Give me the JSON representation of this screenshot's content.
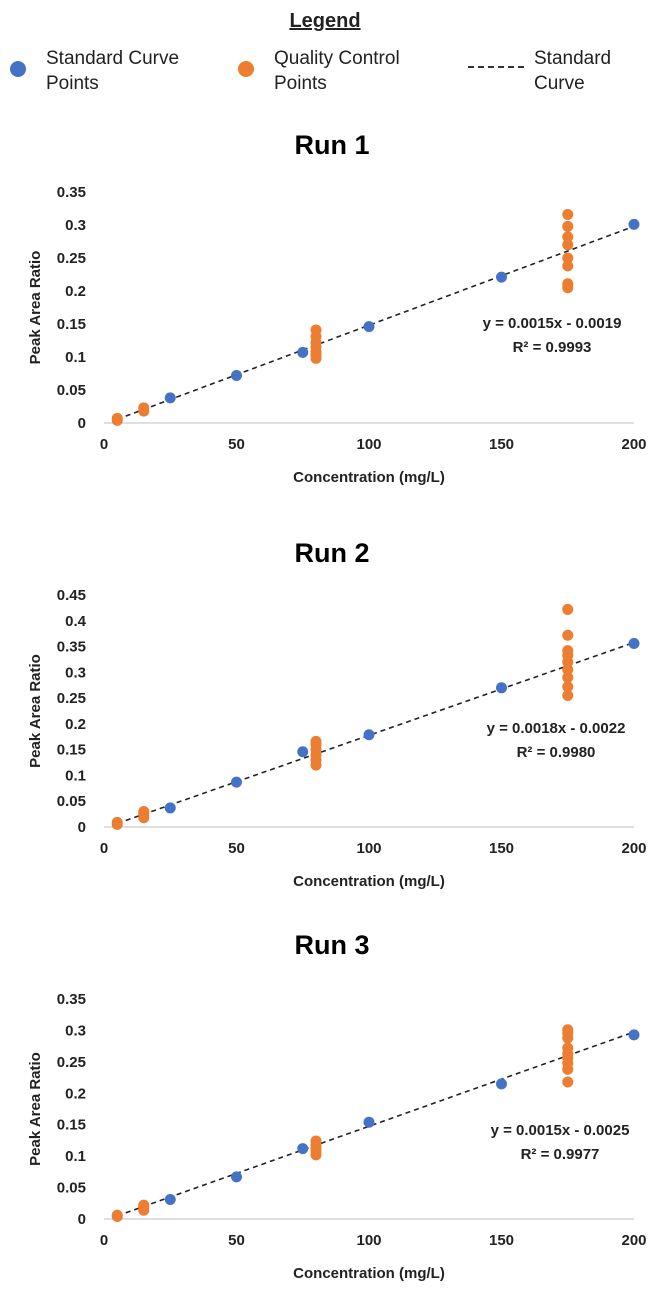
{
  "legend": {
    "title": "Legend",
    "items": [
      {
        "label_line1": "Standard Curve",
        "label_line2": "Points",
        "color": "#4472C4",
        "kind": "point"
      },
      {
        "label_line1": "Quality Control",
        "label_line2": "Points",
        "color": "#ED7D31",
        "kind": "point"
      },
      {
        "label_line1": "Standard",
        "label_line2": "Curve",
        "color": "#333333",
        "kind": "dashed-line"
      }
    ]
  },
  "chart_data": [
    {
      "type": "scatter",
      "title": "Run 1",
      "xlabel": "Concentration (mg/L)",
      "ylabel": "Peak Area Ratio",
      "xlim": [
        0,
        200
      ],
      "ylim": [
        0,
        0.35
      ],
      "xticks": [
        "0",
        "50",
        "100",
        "150",
        "200"
      ],
      "yticks": [
        "0",
        "0.05",
        "0.1",
        "0.15",
        "0.2",
        "0.25",
        "0.3",
        "0.35"
      ],
      "equation": "y = 0.0015x - 0.0019",
      "r2": "R² = 0.9993",
      "fit": {
        "slope": 0.0015,
        "intercept": -0.0019
      },
      "series": [
        {
          "name": "Standard Curve Points",
          "color": "#4472C4",
          "points": [
            [
              25,
              0.038
            ],
            [
              50,
              0.072
            ],
            [
              75,
              0.107
            ],
            [
              100,
              0.146
            ],
            [
              150,
              0.221
            ],
            [
              200,
              0.301
            ]
          ]
        },
        {
          "name": "Quality Control Points",
          "color": "#ED7D31",
          "points": [
            [
              5,
              0.004
            ],
            [
              5,
              0.007
            ],
            [
              15,
              0.018
            ],
            [
              15,
              0.023
            ],
            [
              80,
              0.098
            ],
            [
              80,
              0.103
            ],
            [
              80,
              0.108
            ],
            [
              80,
              0.115
            ],
            [
              80,
              0.122
            ],
            [
              80,
              0.131
            ],
            [
              80,
              0.141
            ],
            [
              175,
              0.205
            ],
            [
              175,
              0.211
            ],
            [
              175,
              0.238
            ],
            [
              175,
              0.25
            ],
            [
              175,
              0.27
            ],
            [
              175,
              0.282
            ],
            [
              175,
              0.298
            ],
            [
              175,
              0.316
            ]
          ]
        }
      ]
    },
    {
      "type": "scatter",
      "title": "Run 2",
      "xlabel": "Concentration (mg/L)",
      "ylabel": "Peak Area Ratio",
      "xlim": [
        0,
        200
      ],
      "ylim": [
        0,
        0.45
      ],
      "xticks": [
        "0",
        "50",
        "100",
        "150",
        "200"
      ],
      "yticks": [
        "0",
        "0.05",
        "0.1",
        "0.15",
        "0.2",
        "0.25",
        "0.3",
        "0.35",
        "0.4",
        "0.45"
      ],
      "equation": "y = 0.0018x - 0.0022",
      "r2": "R² = 0.9980",
      "fit": {
        "slope": 0.0018,
        "intercept": -0.0022
      },
      "series": [
        {
          "name": "Standard Curve Points",
          "color": "#4472C4",
          "points": [
            [
              25,
              0.037
            ],
            [
              50,
              0.087
            ],
            [
              75,
              0.146
            ],
            [
              100,
              0.179
            ],
            [
              150,
              0.27
            ],
            [
              200,
              0.356
            ]
          ]
        },
        {
          "name": "Quality Control Points",
          "color": "#ED7D31",
          "points": [
            [
              5,
              0.005
            ],
            [
              5,
              0.009
            ],
            [
              15,
              0.018
            ],
            [
              15,
              0.025
            ],
            [
              15,
              0.03
            ],
            [
              80,
              0.12
            ],
            [
              80,
              0.13
            ],
            [
              80,
              0.14
            ],
            [
              80,
              0.15
            ],
            [
              80,
              0.16
            ],
            [
              80,
              0.166
            ],
            [
              175,
              0.255
            ],
            [
              175,
              0.272
            ],
            [
              175,
              0.29
            ],
            [
              175,
              0.305
            ],
            [
              175,
              0.32
            ],
            [
              175,
              0.333
            ],
            [
              175,
              0.342
            ],
            [
              175,
              0.372
            ],
            [
              175,
              0.422
            ]
          ]
        }
      ]
    },
    {
      "type": "scatter",
      "title": "Run 3",
      "xlabel": "Concentration (mg/L)",
      "ylabel": "Peak Area Ratio",
      "xlim": [
        0,
        200
      ],
      "ylim": [
        0,
        0.35
      ],
      "xticks": [
        "0",
        "50",
        "100",
        "150",
        "200"
      ],
      "yticks": [
        "0",
        "0.05",
        "0.1",
        "0.15",
        "0.2",
        "0.25",
        "0.3",
        "0.35"
      ],
      "equation": "y = 0.0015x - 0.0025",
      "r2": "R² = 0.9977",
      "fit": {
        "slope": 0.0015,
        "intercept": -0.0025
      },
      "series": [
        {
          "name": "Standard Curve Points",
          "color": "#4472C4",
          "points": [
            [
              25,
              0.031
            ],
            [
              50,
              0.067
            ],
            [
              75,
              0.112
            ],
            [
              100,
              0.154
            ],
            [
              150,
              0.215
            ],
            [
              200,
              0.293
            ]
          ]
        },
        {
          "name": "Quality Control Points",
          "color": "#ED7D31",
          "points": [
            [
              5,
              0.004
            ],
            [
              5,
              0.006
            ],
            [
              15,
              0.014
            ],
            [
              15,
              0.019
            ],
            [
              15,
              0.022
            ],
            [
              80,
              0.102
            ],
            [
              80,
              0.108
            ],
            [
              80,
              0.113
            ],
            [
              80,
              0.118
            ],
            [
              80,
              0.124
            ],
            [
              175,
              0.218
            ],
            [
              175,
              0.238
            ],
            [
              175,
              0.248
            ],
            [
              175,
              0.256
            ],
            [
              175,
              0.263
            ],
            [
              175,
              0.272
            ],
            [
              175,
              0.288
            ],
            [
              175,
              0.295
            ],
            [
              175,
              0.301
            ]
          ]
        }
      ]
    }
  ]
}
